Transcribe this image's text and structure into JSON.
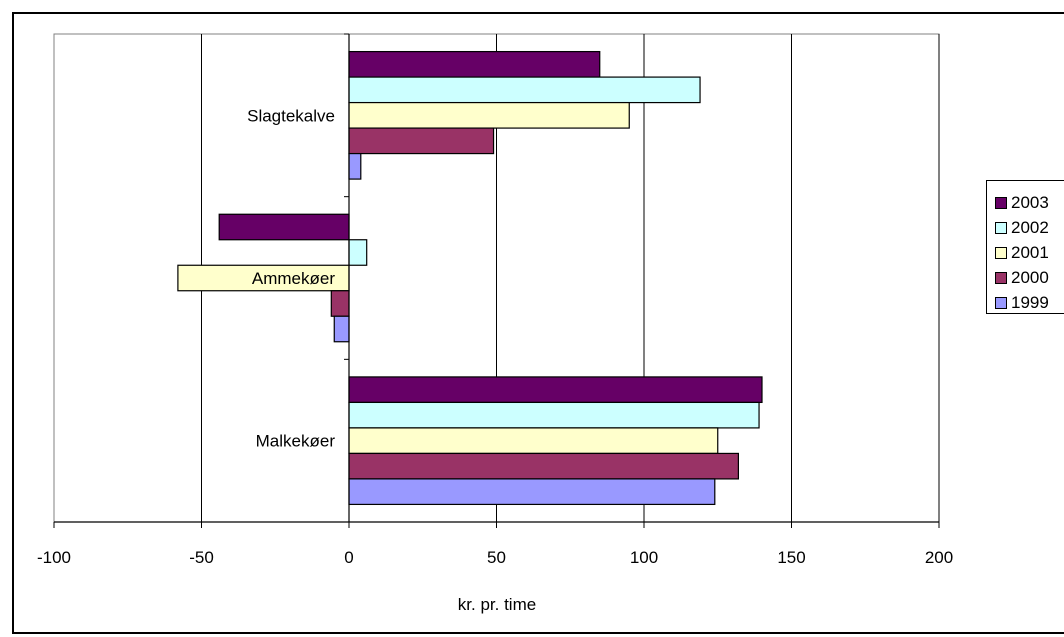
{
  "chart_data": {
    "type": "bar",
    "orientation": "horizontal",
    "categories": [
      "Slagtekalve",
      "Ammekøer",
      "Malkekøer"
    ],
    "series": [
      {
        "name": "2003",
        "color": "#660066",
        "values": [
          85,
          -44,
          140
        ]
      },
      {
        "name": "2002",
        "color": "#ccffff",
        "values": [
          119,
          6,
          139
        ]
      },
      {
        "name": "2001",
        "color": "#ffffcc",
        "values": [
          95,
          -58,
          125
        ]
      },
      {
        "name": "2000",
        "color": "#993366",
        "values": [
          49,
          -6,
          132
        ]
      },
      {
        "name": "1999",
        "color": "#9999ff",
        "values": [
          4,
          -5,
          124
        ]
      }
    ],
    "xlim": [
      -100,
      200
    ],
    "xticks": [
      "-100",
      "-50",
      "0",
      "50",
      "100",
      "150",
      "200"
    ],
    "xlabel": "kr. pr. time",
    "ylabel": "",
    "title": "",
    "grid": "vertical",
    "legend": "right"
  }
}
